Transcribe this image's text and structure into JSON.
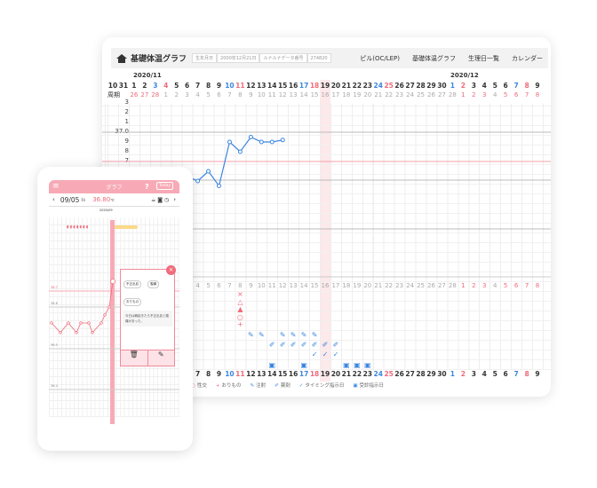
{
  "desktop": {
    "title": "基礎体温グラフ",
    "fields": [
      {
        "label": "生年月日",
        "value": "2000年12月21日"
      },
      {
        "label": "ルナルナデータ番号",
        "value": "274820"
      }
    ],
    "nav": [
      "ピル(OC/LEP)",
      "基礎体温グラフ",
      "生理日一覧",
      "カレンダー"
    ],
    "months": [
      "2020/11",
      "2020/12"
    ],
    "cycle_label": "周期",
    "days": [
      {
        "d": "10",
        "c": ""
      },
      {
        "d": "31",
        "c": ""
      },
      {
        "d": "1",
        "c": ""
      },
      {
        "d": "2",
        "c": ""
      },
      {
        "d": "3",
        "c": "blue"
      },
      {
        "d": "4",
        "c": "red"
      },
      {
        "d": "5",
        "c": ""
      },
      {
        "d": "6",
        "c": ""
      },
      {
        "d": "7",
        "c": ""
      },
      {
        "d": "8",
        "c": ""
      },
      {
        "d": "9",
        "c": ""
      },
      {
        "d": "10",
        "c": "blue"
      },
      {
        "d": "11",
        "c": "red"
      },
      {
        "d": "12",
        "c": ""
      },
      {
        "d": "13",
        "c": ""
      },
      {
        "d": "14",
        "c": ""
      },
      {
        "d": "15",
        "c": ""
      },
      {
        "d": "16",
        "c": ""
      },
      {
        "d": "17",
        "c": "blue"
      },
      {
        "d": "18",
        "c": "red"
      },
      {
        "d": "19",
        "c": ""
      },
      {
        "d": "20",
        "c": ""
      },
      {
        "d": "21",
        "c": ""
      },
      {
        "d": "22",
        "c": ""
      },
      {
        "d": "23",
        "c": ""
      },
      {
        "d": "24",
        "c": "blue"
      },
      {
        "d": "25",
        "c": "red"
      },
      {
        "d": "26",
        "c": ""
      },
      {
        "d": "27",
        "c": ""
      },
      {
        "d": "28",
        "c": ""
      },
      {
        "d": "29",
        "c": ""
      },
      {
        "d": "30",
        "c": ""
      },
      {
        "d": "1",
        "c": "blue"
      },
      {
        "d": "2",
        "c": "red"
      },
      {
        "d": "3",
        "c": ""
      },
      {
        "d": "4",
        "c": ""
      },
      {
        "d": "5",
        "c": ""
      },
      {
        "d": "6",
        "c": ""
      },
      {
        "d": "7",
        "c": "blue"
      },
      {
        "d": "8",
        "c": "red"
      },
      {
        "d": "9",
        "c": ""
      }
    ],
    "cycle": [
      {
        "d": "",
        "c": ""
      },
      {
        "d": "",
        "c": ""
      },
      {
        "d": "26",
        "c": "red"
      },
      {
        "d": "27",
        "c": "red"
      },
      {
        "d": "28",
        "c": "red"
      },
      {
        "d": "1",
        "c": ""
      },
      {
        "d": "2",
        "c": ""
      },
      {
        "d": "3",
        "c": ""
      },
      {
        "d": "4",
        "c": ""
      },
      {
        "d": "5",
        "c": ""
      },
      {
        "d": "6",
        "c": ""
      },
      {
        "d": "7",
        "c": ""
      },
      {
        "d": "8",
        "c": ""
      },
      {
        "d": "9",
        "c": ""
      },
      {
        "d": "10",
        "c": ""
      },
      {
        "d": "11",
        "c": ""
      },
      {
        "d": "12",
        "c": ""
      },
      {
        "d": "13",
        "c": ""
      },
      {
        "d": "14",
        "c": ""
      },
      {
        "d": "15",
        "c": ""
      },
      {
        "d": "16",
        "c": ""
      },
      {
        "d": "17",
        "c": ""
      },
      {
        "d": "18",
        "c": ""
      },
      {
        "d": "19",
        "c": ""
      },
      {
        "d": "20",
        "c": ""
      },
      {
        "d": "21",
        "c": ""
      },
      {
        "d": "22",
        "c": ""
      },
      {
        "d": "23",
        "c": ""
      },
      {
        "d": "24",
        "c": ""
      },
      {
        "d": "25",
        "c": ""
      },
      {
        "d": "26",
        "c": ""
      },
      {
        "d": "27",
        "c": ""
      },
      {
        "d": "28",
        "c": ""
      },
      {
        "d": "1",
        "c": "red"
      },
      {
        "d": "2",
        "c": "red"
      },
      {
        "d": "3",
        "c": "red"
      },
      {
        "d": "4",
        "c": ""
      },
      {
        "d": "5",
        "c": "red"
      },
      {
        "d": "6",
        "c": "red"
      },
      {
        "d": "7",
        "c": "red"
      },
      {
        "d": "8",
        "c": "red"
      }
    ],
    "highlight_day": "2020/11/19",
    "y_labels": [
      "3",
      "2",
      "1",
      "37.0",
      "9",
      "8",
      "7"
    ],
    "coverline": 36.7,
    "temps": [
      {
        "day": 5,
        "t": 36.6
      },
      {
        "day": 6,
        "t": 36.55
      },
      {
        "day": 7,
        "t": 36.5
      },
      {
        "day": 8,
        "t": 36.6
      },
      {
        "day": 9,
        "t": 36.45
      },
      {
        "day": 10,
        "t": 36.9
      },
      {
        "day": 11,
        "t": 36.8
      },
      {
        "day": 12,
        "t": 36.95
      },
      {
        "day": 13,
        "t": 36.9
      },
      {
        "day": 14,
        "t": 36.9
      },
      {
        "day": 15,
        "t": 36.92
      }
    ],
    "marks": {
      "day11": [
        "×",
        "△",
        "▲",
        "○",
        "+"
      ],
      "injection": [
        12,
        13,
        15,
        16,
        17,
        18
      ],
      "medicine": [
        14,
        15,
        16,
        17,
        18,
        19,
        20
      ],
      "timing": [
        18,
        19,
        20
      ],
      "visit": [
        14,
        17,
        21,
        22,
        23
      ]
    },
    "legend": [
      {
        "icon": "○",
        "label": "性交"
      },
      {
        "icon": "+",
        "label": "おりもの"
      },
      {
        "icon": "✎",
        "label": "注射"
      },
      {
        "icon": "✐",
        "label": "薬剤"
      },
      {
        "icon": "✓",
        "label": "タイミング指示日"
      },
      {
        "icon": "▣",
        "label": "受診指示日"
      }
    ],
    "colors": {
      "line": "#3b86e0",
      "coverline": "#f4a0ab",
      "accent": "#f06a7a",
      "highlight": "#fde8ea"
    }
  },
  "phone": {
    "title": "グラフ",
    "help": "?",
    "today": "Today",
    "date": "09/05",
    "weekday": "Fri",
    "temp": "36.80",
    "unit": "℃",
    "month": "2020/09",
    "y_labels": [
      "36.7",
      "36.6",
      "36.5",
      "36.4"
    ],
    "temps": [
      36.5,
      36.44,
      36.5,
      36.44,
      36.5,
      36.5,
      36.44,
      36.5,
      36.55,
      36.6,
      36.76
    ],
    "popup": {
      "tags": [
        "不正出血",
        "腹痛",
        "おりもの"
      ],
      "note": "今日は朝起きたら不正出血と腹痛があった。"
    },
    "colors": {
      "header": "#f7aab6",
      "line": "#f06a7a"
    }
  }
}
